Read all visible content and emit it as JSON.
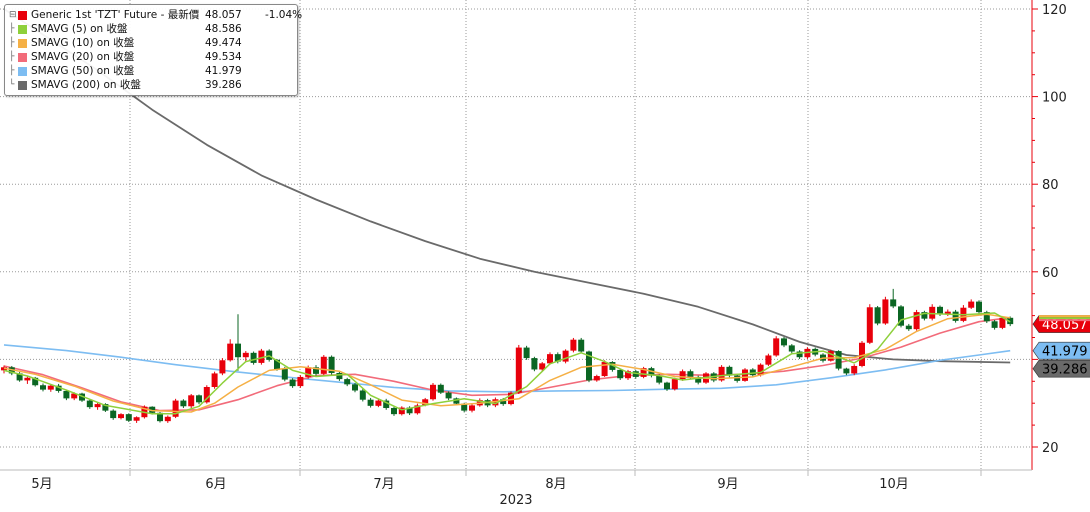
{
  "chart_data": {
    "type": "candlestick",
    "xlabel": "2023",
    "x_ticks": [
      "5月",
      "6月",
      "7月",
      "8月",
      "9月",
      "10月"
    ],
    "y_ticks": [
      20,
      40,
      60,
      80,
      100,
      120
    ],
    "ylim": [
      16,
      122
    ],
    "grid": true,
    "legend_position": "top-left",
    "series": [
      {
        "name": "Generic 1st 'TZT' Future - 最新價",
        "last": "48.057",
        "change": "-1.04%",
        "color": "#e8000b"
      },
      {
        "name": "SMAVG (5)  on 收盤",
        "last": "48.586",
        "color": "#8ed03b"
      },
      {
        "name": "SMAVG (10)  on 收盤",
        "last": "49.474",
        "color": "#f5b045"
      },
      {
        "name": "SMAVG (20)  on 收盤",
        "last": "49.534",
        "color": "#f26b7a"
      },
      {
        "name": "SMAVG (50)  on 收盤",
        "last": "41.979",
        "color": "#7dbdf2"
      },
      {
        "name": "SMAVG (200)  on 收盤",
        "last": "39.286",
        "color": "#6a6a6a"
      }
    ],
    "axis_tags": [
      {
        "label": "48.057",
        "value": 48.057,
        "color": "#e8000b"
      },
      {
        "label": "41.979",
        "value": 41.979,
        "color": "#7dbdf2"
      },
      {
        "label": "39.286",
        "value": 39.286,
        "color": "#6a6a6a"
      }
    ],
    "ohlc": [
      [
        37.5,
        38.6,
        36.8,
        38.2
      ],
      [
        38.2,
        38.5,
        36.4,
        36.8
      ],
      [
        36.8,
        37.1,
        34.9,
        35.2
      ],
      [
        35.2,
        36.2,
        34.4,
        35.8
      ],
      [
        35.8,
        36.0,
        33.8,
        34.1
      ],
      [
        34.1,
        34.5,
        32.7,
        33.1
      ],
      [
        33.1,
        34.3,
        32.6,
        34.0
      ],
      [
        34.0,
        34.4,
        32.4,
        32.8
      ],
      [
        32.8,
        33.1,
        30.7,
        31.1
      ],
      [
        31.1,
        32.5,
        30.7,
        32.2
      ],
      [
        32.2,
        32.4,
        30.3,
        30.6
      ],
      [
        30.6,
        30.8,
        28.7,
        29.1
      ],
      [
        29.1,
        30.1,
        28.5,
        29.8
      ],
      [
        29.8,
        30.0,
        28.0,
        28.3
      ],
      [
        28.3,
        28.6,
        26.2,
        26.6
      ],
      [
        26.6,
        27.7,
        26.3,
        27.5
      ],
      [
        27.5,
        27.7,
        25.7,
        26.0
      ],
      [
        26.0,
        27.0,
        25.5,
        26.8
      ],
      [
        26.8,
        29.5,
        26.5,
        29.2
      ],
      [
        29.2,
        29.3,
        27.4,
        27.8
      ],
      [
        27.8,
        28.0,
        25.6,
        25.9
      ],
      [
        25.9,
        27.2,
        25.5,
        26.9
      ],
      [
        26.9,
        31.0,
        26.6,
        30.6
      ],
      [
        30.6,
        30.9,
        28.9,
        29.3
      ],
      [
        29.3,
        32.1,
        28.9,
        31.8
      ],
      [
        31.8,
        32.0,
        29.8,
        30.2
      ],
      [
        30.2,
        34.1,
        29.9,
        33.7
      ],
      [
        33.7,
        37.2,
        33.3,
        36.8
      ],
      [
        36.8,
        40.3,
        36.4,
        39.8
      ],
      [
        39.8,
        44.6,
        39.5,
        43.6
      ],
      [
        43.6,
        50.3,
        37.4,
        40.5
      ],
      [
        40.5,
        41.9,
        39.6,
        41.5
      ],
      [
        41.5,
        41.8,
        38.8,
        39.2
      ],
      [
        39.2,
        42.4,
        38.8,
        42.0
      ],
      [
        42.0,
        42.3,
        39.5,
        39.9
      ],
      [
        39.9,
        40.1,
        37.4,
        37.8
      ],
      [
        37.8,
        38.3,
        35.0,
        35.4
      ],
      [
        35.4,
        35.7,
        33.5,
        33.9
      ],
      [
        33.9,
        36.4,
        33.5,
        36.0
      ],
      [
        36.0,
        38.6,
        35.6,
        38.2
      ],
      [
        38.2,
        38.7,
        36.3,
        36.7
      ],
      [
        36.7,
        41.0,
        36.4,
        40.6
      ],
      [
        40.6,
        40.9,
        36.5,
        36.9
      ],
      [
        36.9,
        37.3,
        35.1,
        35.5
      ],
      [
        35.5,
        35.8,
        33.9,
        34.3
      ],
      [
        34.3,
        34.6,
        32.5,
        32.9
      ],
      [
        32.9,
        33.3,
        30.4,
        30.8
      ],
      [
        30.8,
        31.2,
        29.0,
        29.4
      ],
      [
        29.4,
        30.9,
        29.1,
        30.6
      ],
      [
        30.6,
        31.0,
        28.5,
        28.9
      ],
      [
        28.9,
        29.2,
        27.1,
        27.5
      ],
      [
        27.5,
        29.3,
        27.2,
        29.0
      ],
      [
        29.0,
        29.3,
        27.3,
        27.7
      ],
      [
        27.7,
        29.9,
        27.4,
        29.5
      ],
      [
        29.5,
        31.2,
        29.3,
        30.9
      ],
      [
        30.9,
        34.6,
        30.6,
        34.2
      ],
      [
        34.2,
        34.5,
        32.1,
        32.4
      ],
      [
        32.4,
        32.7,
        30.7,
        31.1
      ],
      [
        31.1,
        31.3,
        29.5,
        29.9
      ],
      [
        29.9,
        30.1,
        27.9,
        28.3
      ],
      [
        28.3,
        29.8,
        27.9,
        29.5
      ],
      [
        29.5,
        31.1,
        29.2,
        30.7
      ],
      [
        30.7,
        31.0,
        29.1,
        29.5
      ],
      [
        29.5,
        31.3,
        29.1,
        30.9
      ],
      [
        30.9,
        31.2,
        29.4,
        29.8
      ],
      [
        29.8,
        32.7,
        29.5,
        32.4
      ],
      [
        32.4,
        43.3,
        32.1,
        42.7
      ],
      [
        42.7,
        43.1,
        39.9,
        40.3
      ],
      [
        40.3,
        40.6,
        37.3,
        37.7
      ],
      [
        37.7,
        39.4,
        37.4,
        39.1
      ],
      [
        39.1,
        41.6,
        38.8,
        41.2
      ],
      [
        41.2,
        41.6,
        39.1,
        39.5
      ],
      [
        39.5,
        42.3,
        39.1,
        42.0
      ],
      [
        42.0,
        44.9,
        41.6,
        44.5
      ],
      [
        44.5,
        44.9,
        41.5,
        41.8
      ],
      [
        41.8,
        42.0,
        34.8,
        35.2
      ],
      [
        35.2,
        36.5,
        34.9,
        36.2
      ],
      [
        36.2,
        39.8,
        36.0,
        39.4
      ],
      [
        39.4,
        39.6,
        37.2,
        37.6
      ],
      [
        37.6,
        37.9,
        35.3,
        35.7
      ],
      [
        35.7,
        37.6,
        35.3,
        37.3
      ],
      [
        37.3,
        37.6,
        35.6,
        36.0
      ],
      [
        36.0,
        38.3,
        35.7,
        38.0
      ],
      [
        38.0,
        38.3,
        35.9,
        36.3
      ],
      [
        36.3,
        36.6,
        34.3,
        34.7
      ],
      [
        34.7,
        34.9,
        32.8,
        33.2
      ],
      [
        33.2,
        35.8,
        32.9,
        35.5
      ],
      [
        35.5,
        37.7,
        35.1,
        37.3
      ],
      [
        37.3,
        37.7,
        35.6,
        36.0
      ],
      [
        36.0,
        36.3,
        34.3,
        34.7
      ],
      [
        34.7,
        37.1,
        34.4,
        36.8
      ],
      [
        36.8,
        37.1,
        34.8,
        35.2
      ],
      [
        35.2,
        38.7,
        34.9,
        38.3
      ],
      [
        38.3,
        38.6,
        35.9,
        36.3
      ],
      [
        36.3,
        36.6,
        34.7,
        35.1
      ],
      [
        35.1,
        38.0,
        34.9,
        37.7
      ],
      [
        37.7,
        38.0,
        36.0,
        36.4
      ],
      [
        36.4,
        39.1,
        36.1,
        38.8
      ],
      [
        38.8,
        41.3,
        38.5,
        40.9
      ],
      [
        40.9,
        45.3,
        40.6,
        44.8
      ],
      [
        44.8,
        45.1,
        42.8,
        43.2
      ],
      [
        43.2,
        43.5,
        41.4,
        41.8
      ],
      [
        41.8,
        42.1,
        40.1,
        40.5
      ],
      [
        40.5,
        42.8,
        40.1,
        42.4
      ],
      [
        42.4,
        42.7,
        40.7,
        41.1
      ],
      [
        41.1,
        41.4,
        39.3,
        39.7
      ],
      [
        39.7,
        42.2,
        39.5,
        41.9
      ],
      [
        41.9,
        42.1,
        37.5,
        37.9
      ],
      [
        37.9,
        38.1,
        36.4,
        36.8
      ],
      [
        36.8,
        38.9,
        36.4,
        38.5
      ],
      [
        38.5,
        44.2,
        38.2,
        43.8
      ],
      [
        43.8,
        52.6,
        43.5,
        51.9
      ],
      [
        51.9,
        52.2,
        47.8,
        48.2
      ],
      [
        48.2,
        54.3,
        47.9,
        53.7
      ],
      [
        53.7,
        56.1,
        51.7,
        52.1
      ],
      [
        52.1,
        52.4,
        47.3,
        47.7
      ],
      [
        47.7,
        48.1,
        46.5,
        46.9
      ],
      [
        46.9,
        51.3,
        46.6,
        50.8
      ],
      [
        50.8,
        51.1,
        48.9,
        49.3
      ],
      [
        49.3,
        52.6,
        48.9,
        52.0
      ],
      [
        52.0,
        52.3,
        49.9,
        50.3
      ],
      [
        50.3,
        51.4,
        49.9,
        50.9
      ],
      [
        50.9,
        51.3,
        48.4,
        48.8
      ],
      [
        48.8,
        52.4,
        48.5,
        51.8
      ],
      [
        51.8,
        53.7,
        51.5,
        53.2
      ],
      [
        53.2,
        53.5,
        50.4,
        50.8
      ],
      [
        50.8,
        51.1,
        48.3,
        48.7
      ],
      [
        48.7,
        49.0,
        46.8,
        47.2
      ],
      [
        47.2,
        49.9,
        46.9,
        49.5
      ],
      [
        49.5,
        49.8,
        47.6,
        48.057
      ]
    ],
    "smavg": {
      "5": [
        [
          0,
          37.5
        ],
        [
          3,
          36.2
        ],
        [
          8,
          33.0
        ],
        [
          13,
          29.5
        ],
        [
          19,
          27.6
        ],
        [
          22,
          27.6
        ],
        [
          25,
          29.3
        ],
        [
          28,
          34.6
        ],
        [
          31,
          39.5
        ],
        [
          34,
          40.8
        ],
        [
          37,
          37.5
        ],
        [
          40,
          36.1
        ],
        [
          44,
          36.6
        ],
        [
          47,
          31.8
        ],
        [
          51,
          28.5
        ],
        [
          55,
          29.9
        ],
        [
          59,
          31.0
        ],
        [
          63,
          29.9
        ],
        [
          67,
          33.8
        ],
        [
          70,
          39.0
        ],
        [
          74,
          41.5
        ],
        [
          77,
          39.5
        ],
        [
          80,
          37.0
        ],
        [
          84,
          36.3
        ],
        [
          87,
          35.3
        ],
        [
          92,
          36.3
        ],
        [
          97,
          37.0
        ],
        [
          101,
          41.3
        ],
        [
          105,
          41.9
        ],
        [
          109,
          39.2
        ],
        [
          112,
          42.3
        ],
        [
          115,
          49.0
        ],
        [
          118,
          50.5
        ],
        [
          123,
          50.2
        ],
        [
          127,
          50.6
        ],
        [
          129,
          48.586
        ]
      ],
      "10": [
        [
          0,
          38.0
        ],
        [
          4,
          36.6
        ],
        [
          9,
          33.9
        ],
        [
          14,
          30.5
        ],
        [
          19,
          28.3
        ],
        [
          24,
          28.0
        ],
        [
          27,
          30.0
        ],
        [
          30,
          33.7
        ],
        [
          34,
          37.5
        ],
        [
          38,
          38.3
        ],
        [
          43,
          37.3
        ],
        [
          47,
          34.2
        ],
        [
          51,
          30.7
        ],
        [
          56,
          29.4
        ],
        [
          61,
          30.0
        ],
        [
          66,
          31.0
        ],
        [
          70,
          35.2
        ],
        [
          74,
          38.2
        ],
        [
          78,
          38.9
        ],
        [
          82,
          37.7
        ],
        [
          86,
          36.1
        ],
        [
          91,
          35.6
        ],
        [
          96,
          36.0
        ],
        [
          101,
          38.3
        ],
        [
          105,
          40.3
        ],
        [
          109,
          40.4
        ],
        [
          113,
          42.3
        ],
        [
          117,
          46.4
        ],
        [
          121,
          49.3
        ],
        [
          126,
          50.3
        ],
        [
          129,
          49.474
        ]
      ],
      "20": [
        [
          0,
          38.5
        ],
        [
          5,
          36.5
        ],
        [
          10,
          33.5
        ],
        [
          15,
          30.3
        ],
        [
          20,
          28.3
        ],
        [
          25,
          28.5
        ],
        [
          30,
          30.8
        ],
        [
          35,
          34.0
        ],
        [
          40,
          36.3
        ],
        [
          45,
          36.6
        ],
        [
          50,
          35.0
        ],
        [
          55,
          33.0
        ],
        [
          60,
          31.8
        ],
        [
          65,
          32.0
        ],
        [
          70,
          33.6
        ],
        [
          75,
          35.3
        ],
        [
          80,
          36.3
        ],
        [
          85,
          36.6
        ],
        [
          90,
          36.4
        ],
        [
          95,
          36.6
        ],
        [
          100,
          37.3
        ],
        [
          105,
          38.6
        ],
        [
          110,
          40.3
        ],
        [
          115,
          42.8
        ],
        [
          120,
          46.0
        ],
        [
          125,
          48.6
        ],
        [
          129,
          49.534
        ]
      ],
      "50": [
        [
          0,
          43.3
        ],
        [
          8,
          42.0
        ],
        [
          15,
          40.5
        ],
        [
          22,
          38.8
        ],
        [
          29,
          37.3
        ],
        [
          36,
          36.0
        ],
        [
          43,
          34.8
        ],
        [
          50,
          33.6
        ],
        [
          57,
          32.8
        ],
        [
          64,
          32.6
        ],
        [
          71,
          32.8
        ],
        [
          78,
          32.9
        ],
        [
          85,
          33.2
        ],
        [
          92,
          33.4
        ],
        [
          99,
          34.2
        ],
        [
          106,
          35.8
        ],
        [
          113,
          37.6
        ],
        [
          120,
          39.8
        ],
        [
          125,
          41.0
        ],
        [
          129,
          41.979
        ]
      ],
      "200": [
        [
          0,
          120.0
        ],
        [
          6,
          113.0
        ],
        [
          12,
          106.0
        ],
        [
          19,
          97.0
        ],
        [
          26,
          89.0
        ],
        [
          33,
          82.0
        ],
        [
          40,
          76.5
        ],
        [
          47,
          71.5
        ],
        [
          54,
          67.0
        ],
        [
          61,
          63.0
        ],
        [
          68,
          60.0
        ],
        [
          75,
          57.5
        ],
        [
          82,
          55.0
        ],
        [
          89,
          52.0
        ],
        [
          96,
          48.0
        ],
        [
          102,
          44.0
        ],
        [
          108,
          41.0
        ],
        [
          114,
          40.0
        ],
        [
          120,
          39.6
        ],
        [
          129,
          39.286
        ]
      ]
    }
  }
}
